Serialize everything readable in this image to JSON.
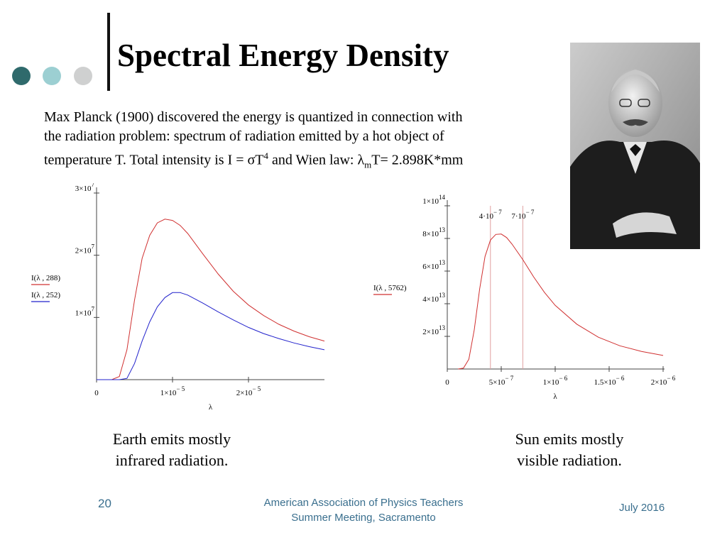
{
  "slide": {
    "title": "Spectral Energy Density",
    "intro_lines": [
      "Max Planck (1900) discovered the energy is quantized in connection with",
      "the radiation problem: spectrum of radiation emitted by a hot object of"
    ],
    "intro_line3": {
      "a": "temperature T. Total intensity is I = σT",
      "sup": "4",
      "b": " and Wien law: λ",
      "sub": "m",
      "c": "T= 2.898K*mm"
    },
    "caption_earth": [
      "Earth emits mostly",
      "infrared radiation."
    ],
    "caption_sun": [
      "Sun emits mostly",
      "visible radiation."
    ],
    "footer": {
      "page": "20",
      "org_line1": "American Association of Physics Teachers",
      "org_line2": "Summer Meeting, Sacramento",
      "date": "July 2016"
    },
    "colors": {
      "dot1": "#2f6a6c",
      "dot2": "#9ccfd2",
      "dot3": "#cfd0d0",
      "footer": "#3a6f8e",
      "red": "#d03030",
      "blue": "#2222cc"
    },
    "photo": "portrait of Max Planck (black and white photograph)"
  },
  "chart_data": [
    {
      "type": "line",
      "xlabel": "λ",
      "xlim": [
        0,
        3e-05
      ],
      "ylim": [
        0,
        30000000.0
      ],
      "x_ticks": [
        {
          "value": 0,
          "m": "0",
          "e": ""
        },
        {
          "value": 1e-05,
          "m": "1×10",
          "e": "− 5"
        },
        {
          "value": 2e-05,
          "m": "2×10",
          "e": "− 5"
        }
      ],
      "y_ticks": [
        {
          "value": 10000000.0,
          "m": "1×10",
          "e": "7"
        },
        {
          "value": 20000000.0,
          "m": "2×10",
          "e": "7"
        },
        {
          "value": 30000000.0,
          "m": "3×10",
          "e": "7"
        }
      ],
      "series": [
        {
          "name": "I(λ , 288)",
          "color": "#d03030",
          "x": [
            0,
            2e-06,
            3e-06,
            4e-06,
            5e-06,
            6e-06,
            7e-06,
            8e-06,
            9e-06,
            1e-05,
            1.1e-05,
            1.2e-05,
            1.4e-05,
            1.6e-05,
            1.8e-05,
            2e-05,
            2.2e-05,
            2.4e-05,
            2.6e-05,
            2.8e-05,
            3e-05
          ],
          "y": [
            0,
            0,
            500000.0,
            4800000.0,
            12800000.0,
            19500000.0,
            23200000.0,
            25200000.0,
            25800000.0,
            25600000.0,
            24800000.0,
            23500000.0,
            20200000.0,
            17000000.0,
            14200000.0,
            12000000.0,
            10300000.0,
            8900000.0,
            7800000.0,
            6900000.0,
            6200000.0
          ]
        },
        {
          "name": "I(λ , 252)",
          "color": "#2222cc",
          "x": [
            0,
            2e-06,
            3e-06,
            4e-06,
            5e-06,
            6e-06,
            7e-06,
            8e-06,
            9e-06,
            1e-05,
            1.1e-05,
            1.2e-05,
            1.4e-05,
            1.6e-05,
            1.8e-05,
            2e-05,
            2.2e-05,
            2.4e-05,
            2.6e-05,
            2.8e-05,
            3e-05
          ],
          "y": [
            0,
            0,
            0,
            200000.0,
            2600000.0,
            6200000.0,
            9300000.0,
            11700000.0,
            13200000.0,
            14000000.0,
            14000000.0,
            13600000.0,
            12300000.0,
            10900000.0,
            9600000.0,
            8400000.0,
            7400000.0,
            6600000.0,
            5900000.0,
            5300000.0,
            4800000.0
          ]
        }
      ]
    },
    {
      "type": "line",
      "xlabel": "λ",
      "xlim": [
        0,
        2e-06
      ],
      "ylim": [
        0,
        100000000000000.0
      ],
      "x_ticks": [
        {
          "value": 0,
          "m": "0",
          "e": ""
        },
        {
          "value": 5e-07,
          "m": "5×10",
          "e": "− 7"
        },
        {
          "value": 1e-06,
          "m": "1×10",
          "e": "− 6"
        },
        {
          "value": 1.5e-06,
          "m": "1.5×10",
          "e": "− 6"
        },
        {
          "value": 2e-06,
          "m": "2×10",
          "e": "− 6"
        }
      ],
      "y_ticks": [
        {
          "value": 20000000000000.0,
          "m": "2×10",
          "e": "13"
        },
        {
          "value": 40000000000000.0,
          "m": "4×10",
          "e": "13"
        },
        {
          "value": 60000000000000.0,
          "m": "6×10",
          "e": "13"
        },
        {
          "value": 80000000000000.0,
          "m": "8×10",
          "e": "13"
        },
        {
          "value": 100000000000000.0,
          "m": "1×10",
          "e": "14"
        }
      ],
      "markers": [
        {
          "value": 4e-07,
          "m": "4·10",
          "e": "− 7"
        },
        {
          "value": 7e-07,
          "m": "7·10",
          "e": "− 7"
        }
      ],
      "series": [
        {
          "name": "I(λ , 5762)",
          "color": "#d03030",
          "x": [
            1e-07,
            1.5e-07,
            2e-07,
            2.5e-07,
            3e-07,
            3.5e-07,
            4e-07,
            4.5e-07,
            5e-07,
            5.5e-07,
            6e-07,
            7e-07,
            8e-07,
            9e-07,
            1e-06,
            1.2e-06,
            1.4e-06,
            1.6e-06,
            1.8e-06,
            2e-06
          ],
          "y": [
            0,
            500000000000.0,
            6000000000000.0,
            24000000000000.0,
            49000000000000.0,
            69000000000000.0,
            79000000000000.0,
            82500000000000.0,
            82700000000000.0,
            80500000000000.0,
            76500000000000.0,
            67000000000000.0,
            56500000000000.0,
            47000000000000.0,
            39000000000000.0,
            27500000000000.0,
            19500000000000.0,
            14200000000000.0,
            10800000000000.0,
            8300000000000.0
          ]
        }
      ]
    }
  ]
}
